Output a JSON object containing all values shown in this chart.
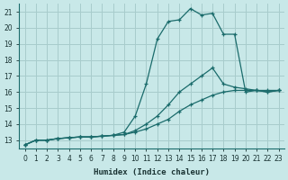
{
  "title": "",
  "xlabel": "Humidex (Indice chaleur)",
  "ylabel": "",
  "bg_color": "#c8e8e8",
  "grid_color": "#a8cccc",
  "line_color": "#1a6b6b",
  "xlim": [
    -0.5,
    23.5
  ],
  "ylim": [
    12.5,
    21.5
  ],
  "xticks": [
    0,
    1,
    2,
    3,
    4,
    5,
    6,
    7,
    8,
    9,
    10,
    11,
    12,
    13,
    14,
    15,
    16,
    17,
    18,
    19,
    20,
    21,
    22,
    23
  ],
  "yticks": [
    13,
    14,
    15,
    16,
    17,
    18,
    19,
    20,
    21
  ],
  "line1_x": [
    0,
    1,
    2,
    3,
    4,
    5,
    6,
    7,
    8,
    9,
    10,
    11,
    12,
    13,
    14,
    15,
    16,
    17,
    18,
    19,
    20,
    21,
    22,
    23
  ],
  "line1_y": [
    12.7,
    13.0,
    13.0,
    13.1,
    13.15,
    13.2,
    13.2,
    13.25,
    13.3,
    13.35,
    13.5,
    13.7,
    14.0,
    14.3,
    14.8,
    15.2,
    15.5,
    15.8,
    16.0,
    16.1,
    16.1,
    16.1,
    16.1,
    16.1
  ],
  "line2_x": [
    0,
    1,
    2,
    3,
    4,
    5,
    6,
    7,
    8,
    9,
    10,
    11,
    12,
    13,
    14,
    15,
    16,
    17,
    18,
    19,
    20,
    21,
    22,
    23
  ],
  "line2_y": [
    12.7,
    13.0,
    13.0,
    13.1,
    13.15,
    13.2,
    13.2,
    13.25,
    13.3,
    13.35,
    13.6,
    14.0,
    14.5,
    15.2,
    16.0,
    16.5,
    17.0,
    17.5,
    16.5,
    16.3,
    16.2,
    16.1,
    16.0,
    16.1
  ],
  "line3_x": [
    0,
    1,
    2,
    3,
    4,
    5,
    6,
    7,
    8,
    9,
    10,
    11,
    12,
    13,
    14,
    15,
    16,
    17,
    18,
    19,
    20,
    21,
    22,
    23
  ],
  "line3_y": [
    12.7,
    13.0,
    13.0,
    13.1,
    13.15,
    13.2,
    13.2,
    13.25,
    13.3,
    13.5,
    14.5,
    16.5,
    19.3,
    20.4,
    20.5,
    21.2,
    20.8,
    20.9,
    19.6,
    19.6,
    16.0,
    16.1,
    16.0,
    16.1
  ]
}
